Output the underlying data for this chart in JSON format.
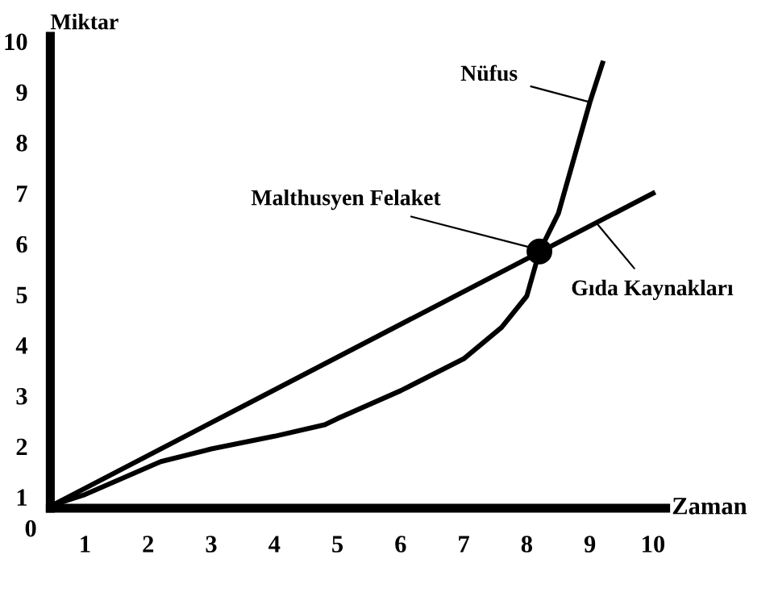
{
  "chart_data": {
    "type": "line",
    "xlabel": "Zaman",
    "ylabel": "Miktar",
    "xlim": [
      0.45,
      10.2
    ],
    "xticks": [
      1,
      2,
      3,
      4,
      5,
      6,
      7,
      8,
      9,
      10
    ],
    "ylim": [
      0.78,
      10.1
    ],
    "yticks": [
      1,
      2,
      3,
      4,
      5,
      6,
      7,
      8,
      9,
      10
    ],
    "grid": false,
    "legend": false,
    "marker": "none",
    "line_style": "solid",
    "series": [
      {
        "color": "#000000",
        "x": [
          0.5,
          1,
          2.2,
          3,
          4,
          4.8,
          5,
          6,
          7,
          7.6,
          8,
          8.2,
          8.5,
          9,
          9.2
        ],
        "values": [
          0.85,
          1.05,
          1.7,
          1.95,
          2.2,
          2.43,
          2.55,
          3.1,
          3.73,
          4.35,
          4.97,
          5.85,
          6.6,
          8.8,
          9.57
        ]
      },
      {
        "color": "#000000",
        "x": [
          0.5,
          10
        ],
        "values": [
          0.85,
          7.0
        ]
      },
      {
        "type": "scatter",
        "color": "#000000",
        "marker": "circle",
        "x": [
          8.2
        ],
        "values": [
          5.85
        ]
      }
    ],
    "annotations": [
      {
        "text": "Nüfus",
        "x": 9.0,
        "y": 8.8
      },
      {
        "text": "Malthusyen Felaket",
        "x": 8.15,
        "y": 5.9
      },
      {
        "text": "Gıda Kaynakları",
        "x": 9.1,
        "y": 6.42
      },
      "0"
    ]
  }
}
